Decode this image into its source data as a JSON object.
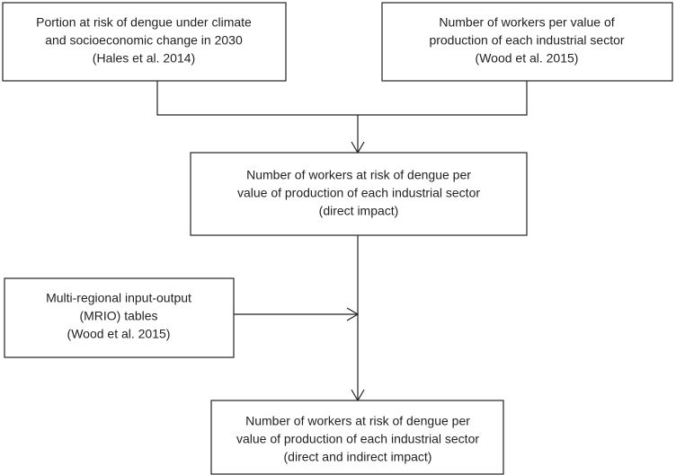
{
  "nodes": [
    {
      "lines": [
        "Portion at risk of dengue under climate",
        "and socioeconomic change in 2030",
        "(Hales et al. 2014)"
      ]
    },
    {
      "lines": [
        "Number of workers per value of",
        "production of each industrial sector",
        "(Wood et al. 2015)"
      ]
    },
    {
      "lines": [
        "Number of workers at risk of dengue per",
        "value of production of each industrial sector",
        "(direct impact)"
      ]
    },
    {
      "lines": [
        "Multi-regional input-output",
        "(MRIO) tables",
        "(Wood et al. 2015)"
      ]
    },
    {
      "lines": [
        "Number of workers at risk of dengue per",
        "value of production of each industrial sector",
        "(direct and indirect impact)"
      ]
    }
  ]
}
